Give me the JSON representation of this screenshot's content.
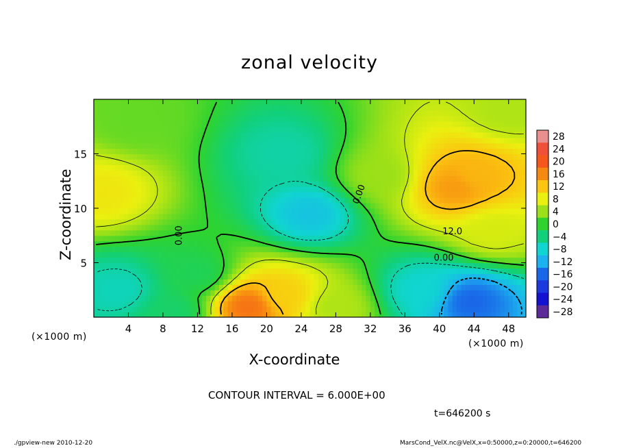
{
  "chart_data": {
    "type": "heatmap",
    "title": "zonal velocity",
    "xlabel": "X-coordinate",
    "ylabel": "Z-coordinate",
    "x_unit_left": "(×1000 m)",
    "x_unit_right": "(×1000 m)",
    "xlim": [
      0,
      50
    ],
    "ylim": [
      0,
      20
    ],
    "x_ticks": [
      "4",
      "8",
      "12",
      "16",
      "20",
      "24",
      "28",
      "32",
      "36",
      "40",
      "44",
      "48"
    ],
    "x_tick_values": [
      4,
      8,
      12,
      16,
      20,
      24,
      28,
      32,
      36,
      40,
      44,
      48
    ],
    "y_ticks": [
      "5",
      "10",
      "15"
    ],
    "y_tick_values": [
      5,
      10,
      15
    ],
    "grid": false,
    "colorbar": {
      "placement": "right",
      "labels": [
        "28",
        "24",
        "20",
        "16",
        "12",
        "8",
        "4",
        "0",
        "−4",
        "−8",
        "−12",
        "−16",
        "−20",
        "−24",
        "−28"
      ],
      "levels": [
        28,
        24,
        20,
        16,
        12,
        8,
        4,
        0,
        -4,
        -8,
        -12,
        -16,
        -20,
        -24,
        -28
      ],
      "colors": [
        "#e9908f",
        "#f0503a",
        "#f5581a",
        "#f68a10",
        "#fcc510",
        "#eaf00f",
        "#9be018",
        "#2ed330",
        "#11d07c",
        "#10d5d0",
        "#1cb2ef",
        "#1a66e8",
        "#1a3ae0",
        "#1212d0",
        "#5d2b99"
      ]
    },
    "contour_labels": [
      "0.00",
      "0.00",
      "0.00",
      "12.0"
    ],
    "contour_interval": "CONTOUR INTERVAL = 6.000E+00",
    "anomalies": [
      {
        "x": 25,
        "z": 9.5,
        "value": -10
      },
      {
        "x": 22,
        "z": 15,
        "value": -6
      },
      {
        "x": 42,
        "z": 12,
        "value": 15
      },
      {
        "x": 44,
        "z": 13,
        "value": 13
      },
      {
        "x": 43.5,
        "z": 1.5,
        "value": -16
      },
      {
        "x": 38,
        "z": 2.5,
        "value": -8
      },
      {
        "x": 18,
        "z": 1,
        "value": 18
      },
      {
        "x": 22,
        "z": 2,
        "value": 11
      },
      {
        "x": 1,
        "z": 11.5,
        "value": 9
      },
      {
        "x": 3,
        "z": 2.5,
        "value": -7
      },
      {
        "x": 9,
        "z": 0.5,
        "value": -3
      },
      {
        "x": 12,
        "z": 4,
        "value": -2
      },
      {
        "x": 48,
        "z": 19,
        "value": 5
      },
      {
        "x": 33,
        "z": 13,
        "value": 4
      },
      {
        "x": 5,
        "z": 18,
        "value": 2
      },
      {
        "x": 28,
        "z": 1,
        "value": 5
      },
      {
        "x": 46,
        "z": 8,
        "value": 7
      }
    ]
  },
  "annotations": {
    "time": "t=646200 s",
    "footer_left": "./gpview-new 2010-12-20",
    "footer_right": "MarsCond_VelX.nc@VelX,x=0:50000,z=0:20000,t=646200"
  }
}
